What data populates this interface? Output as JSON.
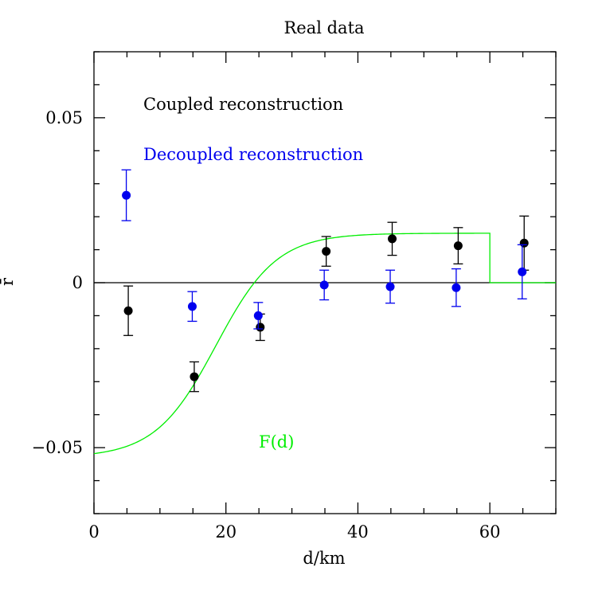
{
  "chart_data": {
    "type": "scatter",
    "title": "Real data",
    "xlabel": "d/km",
    "ylabel": "r̄",
    "xlim": [
      0,
      70
    ],
    "ylim": [
      -0.07,
      0.07
    ],
    "x_ticks": [
      0,
      20,
      40,
      60
    ],
    "x_tick_labels": [
      "0",
      "20",
      "40",
      "60"
    ],
    "y_ticks": [
      -0.05,
      0,
      0.05
    ],
    "y_tick_labels": [
      "−0.05",
      "0",
      "0.05"
    ],
    "grid": false,
    "zero_line": true,
    "legend": [
      {
        "label": "Coupled reconstruction",
        "color": "#000000"
      },
      {
        "label": "Decoupled reconstruction",
        "color": "#0000ee"
      }
    ],
    "series": [
      {
        "name": "Coupled reconstruction",
        "color": "#000000",
        "points": [
          {
            "x": 5.2,
            "y": -0.0085,
            "err": 0.0075
          },
          {
            "x": 15.2,
            "y": -0.0285,
            "err": 0.0045
          },
          {
            "x": 25.2,
            "y": -0.0135,
            "err": 0.004
          },
          {
            "x": 35.2,
            "y": 0.0095,
            "err": 0.0045
          },
          {
            "x": 45.2,
            "y": 0.0133,
            "err": 0.005
          },
          {
            "x": 55.2,
            "y": 0.0112,
            "err": 0.0055
          },
          {
            "x": 65.2,
            "y": 0.012,
            "err": 0.0082
          }
        ]
      },
      {
        "name": "Decoupled reconstruction",
        "color": "#0000ee",
        "points": [
          {
            "x": 4.9,
            "y": 0.0265,
            "err": 0.0077
          },
          {
            "x": 14.9,
            "y": -0.0072,
            "err": 0.0045
          },
          {
            "x": 24.9,
            "y": -0.01,
            "err": 0.004
          },
          {
            "x": 34.9,
            "y": -0.0007,
            "err": 0.0045
          },
          {
            "x": 44.9,
            "y": -0.0012,
            "err": 0.005
          },
          {
            "x": 54.9,
            "y": -0.0015,
            "err": 0.0057
          },
          {
            "x": 64.9,
            "y": 0.0033,
            "err": 0.0082
          }
        ]
      }
    ],
    "curve": {
      "label": "F(d)",
      "color": "#00ee00",
      "formula": "logistic",
      "low": -0.053,
      "high": 0.015,
      "center": 18.5,
      "width": 4.6,
      "cutoff_x": 60,
      "after_cutoff": 0
    }
  }
}
